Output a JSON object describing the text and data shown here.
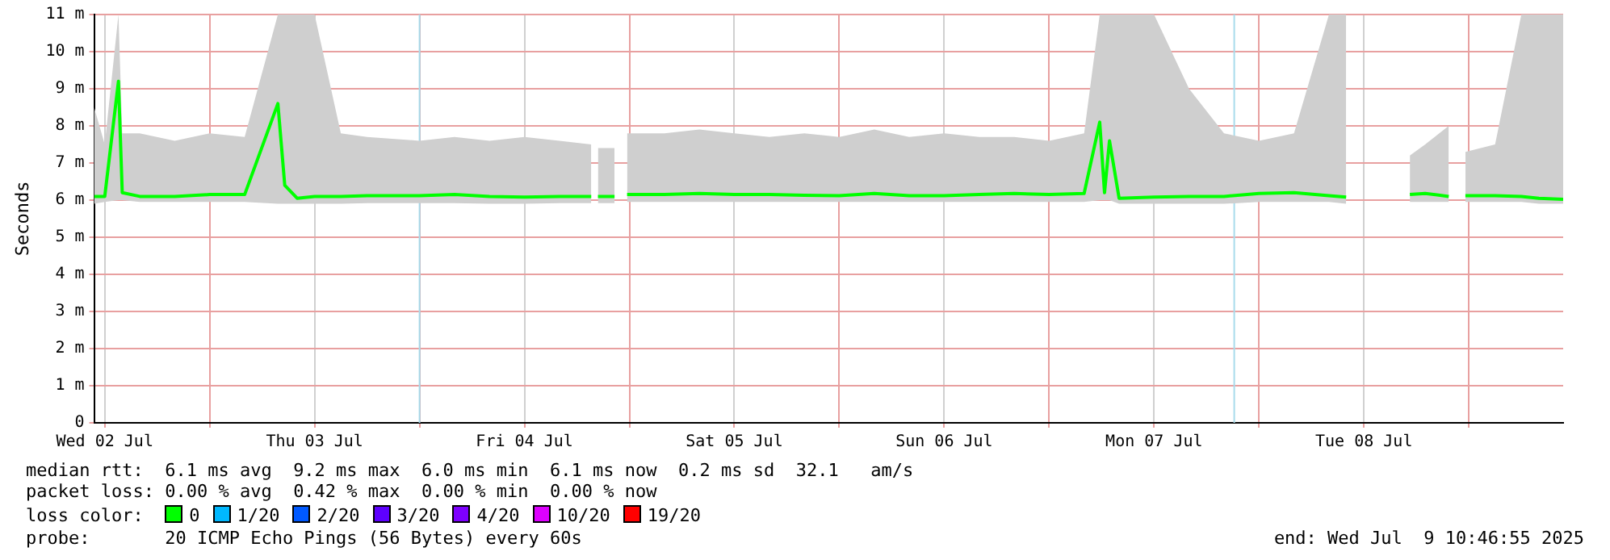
{
  "chart_data": {
    "type": "line",
    "ylabel": "Seconds",
    "legend_title": "loss color:",
    "legend": "bottom",
    "grid": true,
    "marker": "none",
    "line_style": "solid",
    "xlim": [
      "2025-07-02T10:47",
      "2025-07-09T10:47"
    ],
    "xticks": [
      {
        "value": "2025-07-02T12:00",
        "label": "Wed 02 Jul"
      },
      {
        "value": "2025-07-03T00:00",
        "label": null
      },
      {
        "value": "2025-07-03T12:00",
        "label": "Thu 03 Jul"
      },
      {
        "value": "2025-07-04T00:00",
        "label": null
      },
      {
        "value": "2025-07-04T12:00",
        "label": "Fri 04 Jul"
      },
      {
        "value": "2025-07-05T00:00",
        "label": null
      },
      {
        "value": "2025-07-05T12:00",
        "label": "Sat 05 Jul"
      },
      {
        "value": "2025-07-06T00:00",
        "label": null
      },
      {
        "value": "2025-07-06T12:00",
        "label": "Sun 06 Jul"
      },
      {
        "value": "2025-07-07T00:00",
        "label": null
      },
      {
        "value": "2025-07-07T12:00",
        "label": "Mon 07 Jul"
      },
      {
        "value": "2025-07-08T00:00",
        "label": null
      },
      {
        "value": "2025-07-08T12:00",
        "label": "Tue 08 Jul"
      },
      {
        "value": "2025-07-09T00:00",
        "label": null
      }
    ],
    "ylim": [
      0,
      11
    ],
    "yticks": [
      0,
      {
        "value": 1,
        "label": "1 m"
      },
      {
        "value": 2,
        "label": "2 m"
      },
      {
        "value": 3,
        "label": "3 m"
      },
      {
        "value": 4,
        "label": "4 m"
      },
      {
        "value": 5,
        "label": "5 m"
      },
      {
        "value": 6,
        "label": "6 m"
      },
      {
        "value": 7,
        "label": "7 m"
      },
      {
        "value": 8,
        "label": "8 m"
      },
      {
        "value": 9,
        "label": "9 m"
      },
      {
        "value": 10,
        "label": "10 m"
      },
      {
        "value": 11,
        "label": "11 m"
      }
    ],
    "x": [
      "2025-07-02T10:47",
      "2025-07-02T12:00",
      "2025-07-02T13:34",
      "2025-07-02T14:00",
      "2025-07-02T16:00",
      "2025-07-02T20:00",
      "2025-07-03T00:00",
      "2025-07-03T04:00",
      "2025-07-03T07:48",
      "2025-07-03T08:35",
      "2025-07-03T10:00",
      "2025-07-03T12:00",
      "2025-07-03T15:00",
      "2025-07-03T18:00",
      "2025-07-04T00:00",
      "2025-07-04T04:00",
      "2025-07-04T08:00",
      "2025-07-04T12:00",
      "2025-07-04T16:00",
      "2025-07-04T19:38",
      "2025-07-04T20:00",
      "2025-07-04T20:24",
      "2025-07-04T22:18",
      "2025-07-04T23:00",
      "2025-07-04T23:44",
      "2025-07-05T04:00",
      "2025-07-05T08:00",
      "2025-07-05T12:00",
      "2025-07-05T16:00",
      "2025-07-05T20:00",
      "2025-07-06T00:00",
      "2025-07-06T04:00",
      "2025-07-06T08:00",
      "2025-07-06T12:00",
      "2025-07-06T16:00",
      "2025-07-06T20:00",
      "2025-07-07T00:00",
      "2025-07-07T04:00",
      "2025-07-07T05:47",
      "2025-07-07T06:20",
      "2025-07-07T06:54",
      "2025-07-07T08:00",
      "2025-07-07T12:00",
      "2025-07-07T16:00",
      "2025-07-07T20:00",
      "2025-07-08T00:00",
      "2025-07-08T04:00",
      "2025-07-08T08:00",
      "2025-07-08T09:58",
      "2025-07-08T12:00",
      "2025-07-08T17:15",
      "2025-07-08T19:00",
      "2025-07-08T21:42",
      "2025-07-08T22:30",
      "2025-07-08T23:36",
      "2025-07-09T03:00",
      "2025-07-09T06:00",
      "2025-07-09T08:00",
      "2025-07-09T10:47"
    ],
    "series": [
      {
        "name": "0",
        "color": "#00ff00",
        "values": [
          6.1,
          6.1,
          9.2,
          6.2,
          6.1,
          6.1,
          6.15,
          6.15,
          8.6,
          6.4,
          6.05,
          6.1,
          6.1,
          6.12,
          6.12,
          6.15,
          6.1,
          6.08,
          6.1,
          6.1,
          null,
          6.1,
          6.1,
          null,
          6.15,
          6.15,
          6.18,
          6.15,
          6.15,
          6.13,
          6.12,
          6.18,
          6.12,
          6.12,
          6.15,
          6.18,
          6.15,
          6.18,
          8.1,
          6.2,
          7.6,
          6.05,
          6.08,
          6.1,
          6.1,
          6.18,
          6.2,
          6.12,
          6.08,
          null,
          6.15,
          6.18,
          6.1,
          null,
          6.12,
          6.12,
          6.1,
          6.05,
          6.02
        ],
        "lower": [
          5.9,
          5.95,
          6,
          6,
          5.95,
          5.95,
          5.95,
          5.95,
          5.9,
          5.9,
          5.9,
          5.9,
          5.9,
          5.92,
          5.92,
          5.92,
          5.9,
          5.9,
          5.92,
          5.92,
          null,
          5.92,
          5.92,
          null,
          5.95,
          5.95,
          5.95,
          5.95,
          5.95,
          5.95,
          5.95,
          5.95,
          5.95,
          5.95,
          5.95,
          5.95,
          5.95,
          5.95,
          6,
          6,
          6,
          5.9,
          5.9,
          5.9,
          5.9,
          5.95,
          5.95,
          5.95,
          5.9,
          null,
          5.95,
          5.95,
          5.95,
          null,
          5.95,
          5.95,
          5.95,
          5.9,
          5.9
        ],
        "upper": [
          8.5,
          7.5,
          11,
          7.8,
          7.8,
          7.6,
          7.8,
          7.7,
          11,
          11,
          11,
          11,
          7.8,
          7.7,
          7.6,
          7.7,
          7.6,
          7.7,
          7.6,
          7.5,
          null,
          7.4,
          7.4,
          null,
          7.8,
          7.8,
          7.9,
          7.8,
          7.7,
          7.8,
          7.7,
          7.9,
          7.7,
          7.8,
          7.7,
          7.7,
          7.6,
          7.8,
          11,
          11,
          11,
          11,
          11,
          9,
          7.8,
          7.6,
          7.8,
          11,
          11,
          null,
          7.2,
          7.5,
          8,
          null,
          7.3,
          7.5,
          11,
          11,
          11
        ]
      },
      {
        "name": "1/20",
        "color": "#00b8ff",
        "values": [
          null,
          null,
          null,
          null,
          null,
          null,
          null,
          null,
          null,
          null,
          null,
          null,
          null,
          null,
          null,
          null,
          null,
          null,
          null,
          null,
          null,
          null,
          null,
          null,
          null,
          null,
          null,
          null,
          null,
          null,
          null,
          null,
          null,
          null,
          null,
          null,
          null,
          null,
          null,
          null,
          null,
          null,
          null,
          null,
          null,
          null,
          null,
          null,
          null,
          null,
          null,
          null,
          null,
          null,
          null,
          null,
          null,
          null,
          null
        ]
      },
      {
        "name": "2/20",
        "color": "#0059ff",
        "values": [
          null,
          null,
          null,
          null,
          null,
          null,
          null,
          null,
          null,
          null,
          null,
          null,
          null,
          null,
          null,
          null,
          null,
          null,
          null,
          null,
          null,
          null,
          null,
          null,
          null,
          null,
          null,
          null,
          null,
          null,
          null,
          null,
          null,
          null,
          null,
          null,
          null,
          null,
          null,
          null,
          null,
          null,
          null,
          null,
          null,
          null,
          null,
          null,
          null,
          null,
          null,
          null,
          null,
          null,
          null,
          null,
          null,
          null,
          null
        ]
      },
      {
        "name": "3/20",
        "color": "#5e00ff",
        "values": [
          null,
          null,
          null,
          null,
          null,
          null,
          null,
          null,
          null,
          null,
          null,
          null,
          null,
          null,
          null,
          null,
          null,
          null,
          null,
          null,
          null,
          null,
          null,
          null,
          null,
          null,
          null,
          null,
          null,
          null,
          null,
          null,
          null,
          null,
          null,
          null,
          null,
          null,
          null,
          null,
          null,
          null,
          null,
          null,
          null,
          null,
          null,
          null,
          null,
          null,
          null,
          null,
          null,
          null,
          null,
          null,
          null,
          null,
          null
        ]
      },
      {
        "name": "4/20",
        "color": "#7e00ff",
        "values": [
          null,
          null,
          null,
          null,
          null,
          null,
          null,
          null,
          null,
          null,
          null,
          null,
          null,
          null,
          null,
          null,
          null,
          null,
          null,
          null,
          null,
          null,
          null,
          null,
          null,
          null,
          null,
          null,
          null,
          null,
          null,
          null,
          null,
          null,
          null,
          null,
          null,
          null,
          null,
          null,
          null,
          null,
          null,
          null,
          null,
          null,
          null,
          null,
          null,
          null,
          null,
          null,
          null,
          null,
          null,
          null,
          null,
          null,
          null
        ]
      },
      {
        "name": "10/20",
        "color": "#dd00ff",
        "values": [
          null,
          null,
          null,
          null,
          null,
          null,
          null,
          null,
          null,
          null,
          null,
          null,
          null,
          null,
          null,
          null,
          null,
          null,
          null,
          null,
          null,
          null,
          null,
          null,
          null,
          null,
          null,
          null,
          null,
          null,
          null,
          null,
          null,
          null,
          null,
          null,
          null,
          null,
          null,
          null,
          null,
          null,
          null,
          null,
          null,
          null,
          null,
          null,
          null,
          null,
          null,
          null,
          null,
          null,
          null,
          null,
          null,
          null,
          null
        ]
      },
      {
        "name": "19/20",
        "color": "#ff0000",
        "values": [
          null,
          null,
          null,
          null,
          null,
          null,
          null,
          null,
          null,
          null,
          null,
          null,
          null,
          null,
          null,
          null,
          null,
          null,
          null,
          null,
          null,
          null,
          null,
          null,
          null,
          null,
          null,
          null,
          null,
          null,
          null,
          null,
          null,
          null,
          null,
          null,
          null,
          null,
          null,
          null,
          null,
          null,
          null,
          null,
          null,
          null,
          null,
          null,
          null,
          null,
          null,
          null,
          null,
          null,
          null,
          null,
          null,
          null,
          null
        ]
      }
    ],
    "ref_lines": [
      {
        "axis": "x",
        "value": "2025-07-04T00:00",
        "color": "#a8dcec"
      },
      {
        "axis": "x",
        "value": "2025-07-07T21:10",
        "color": "#a8dcec"
      }
    ],
    "annotations": [
      "median rtt:  6.1 ms avg  9.2 ms max  6.0 ms min  6.1 ms now  0.2 ms sd  32.1   am/s",
      "packet loss: 0.00 % avg  0.42 % max  0.00 % min  0.00 % now",
      "probe:       20 ICMP Echo Pings (56 Bytes) every 60s",
      "end: Wed Jul  9 10:46:55 2025"
    ]
  }
}
